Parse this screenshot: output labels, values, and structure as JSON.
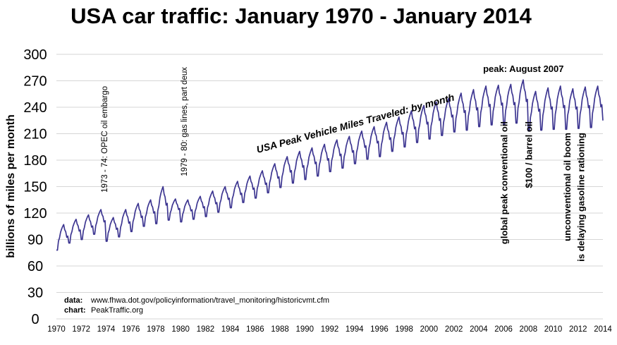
{
  "chart_data": {
    "type": "line",
    "title": "USA car traffic: January 1970 - January 2014",
    "ylabel": "billions of miles per month",
    "ylim": [
      0,
      300
    ],
    "yticks": [
      0,
      30,
      60,
      90,
      120,
      150,
      180,
      210,
      240,
      270,
      300
    ],
    "xlim": [
      1970,
      2014
    ],
    "xticks": [
      1970,
      1972,
      1974,
      1976,
      1978,
      1980,
      1982,
      1984,
      1986,
      1988,
      1990,
      1992,
      1994,
      1996,
      1998,
      2000,
      2002,
      2004,
      2006,
      2008,
      2010,
      2012,
      2014
    ],
    "grid": "horizontal",
    "line_color": "#3d3691",
    "series": [
      {
        "name": "USA Peak Vehicle Miles Traveled: by month",
        "resolution": "monthly, January 1970 - January 2014",
        "annual_low_high": {
          "years": [
            1970,
            1971,
            1972,
            1973,
            1974,
            1975,
            1976,
            1977,
            1978,
            1979,
            1980,
            1981,
            1982,
            1983,
            1984,
            1985,
            1986,
            1987,
            1988,
            1989,
            1990,
            1991,
            1992,
            1993,
            1994,
            1995,
            1996,
            1997,
            1998,
            1999,
            2000,
            2001,
            2002,
            2003,
            2004,
            2005,
            2006,
            2007,
            2008,
            2009,
            2010,
            2011,
            2012,
            2013,
            2014
          ],
          "winter_low": [
            78,
            86,
            90,
            96,
            88,
            93,
            99,
            105,
            108,
            112,
            110,
            113,
            116,
            121,
            126,
            132,
            137,
            143,
            149,
            154,
            158,
            162,
            167,
            171,
            176,
            181,
            184,
            190,
            195,
            200,
            204,
            208,
            212,
            214,
            218,
            220,
            220,
            222,
            213,
            214,
            215,
            215,
            216,
            217,
            225
          ],
          "summer_high": [
            107,
            113,
            118,
            124,
            115,
            124,
            131,
            135,
            150,
            136,
            135,
            139,
            145,
            150,
            156,
            162,
            168,
            176,
            184,
            190,
            194,
            198,
            203,
            207,
            213,
            218,
            223,
            229,
            236,
            242,
            246,
            250,
            256,
            260,
            264,
            265,
            266,
            271,
            258,
            262,
            264,
            261,
            263,
            264,
            264
          ]
        }
      }
    ],
    "annotations": [
      {
        "text": "1973 - 74:  OPEC oil embargo",
        "x": 1974.1
      },
      {
        "text": "1979 - 80: gas lines, part deux",
        "x": 1980.5
      },
      {
        "text": "USA Peak Vehicle Miles Traveled: by month",
        "x": 1986.2
      },
      {
        "text": "peak: August 2007",
        "x": 2007.6
      },
      {
        "text": "global peak conventional oil",
        "x": 2006.3
      },
      {
        "text": "$100 / barrel oil",
        "x": 2008.3
      },
      {
        "text": "unconventional oil boom",
        "x": 2011.4
      },
      {
        "text": "is delaying gasoline rationing",
        "x": 2012.5
      }
    ],
    "source": {
      "data_label": "data:",
      "data_text": "www.fhwa.dot.gov/policyinformation/travel_monitoring/historicvmt.cfm",
      "chart_label": "chart:",
      "chart_text": "PeakTraffic.org"
    }
  }
}
